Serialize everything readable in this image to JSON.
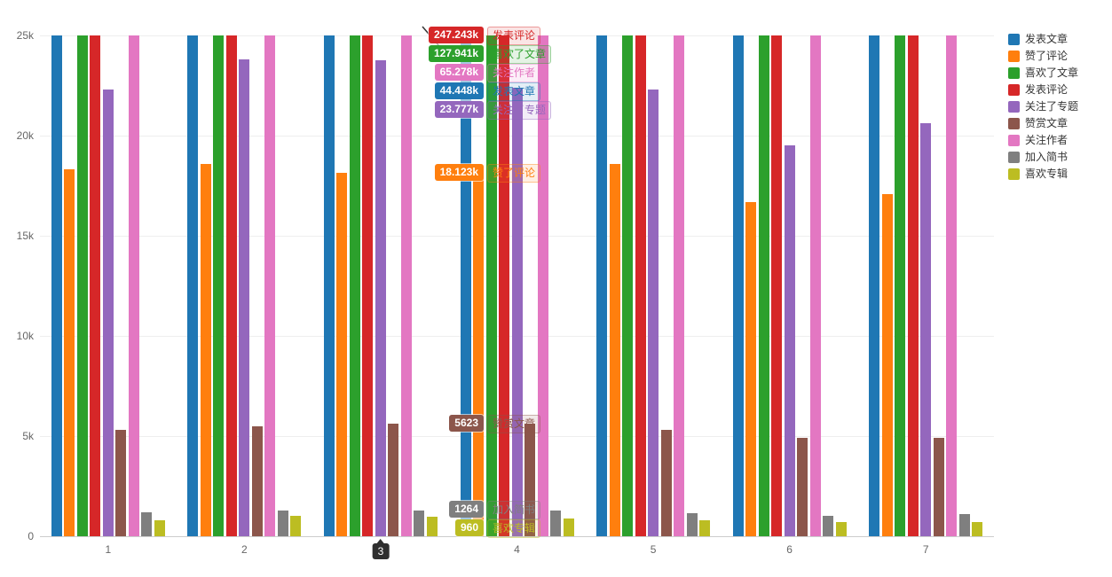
{
  "chart_data": {
    "type": "bar",
    "title": "",
    "xlabel": "",
    "ylabel": "",
    "ylim": [
      0,
      25000
    ],
    "grid": true,
    "legend_position": "right",
    "categories": [
      "1",
      "2",
      "3",
      "4",
      "5",
      "6",
      "7"
    ],
    "y_ticks": [
      "0",
      "5k",
      "10k",
      "15k",
      "20k",
      "25k"
    ],
    "note": "bars with values above 25k are clipped at the top of the plot",
    "series": [
      {
        "name": "发表文章",
        "color": "#1f77b4",
        "values": [
          44448,
          44448,
          44448,
          44448,
          44448,
          44448,
          44448
        ]
      },
      {
        "name": "赞了评论",
        "color": "#ff7f0e",
        "values": [
          18300,
          18600,
          18123,
          18200,
          18600,
          16700,
          17100
        ]
      },
      {
        "name": "喜欢了文章",
        "color": "#2ca02c",
        "values": [
          127941,
          127941,
          127941,
          127941,
          127941,
          127941,
          127941
        ]
      },
      {
        "name": "发表评论",
        "color": "#d62728",
        "values": [
          247243,
          247243,
          247243,
          247243,
          247243,
          247243,
          247243
        ]
      },
      {
        "name": "关注了专题",
        "color": "#9467bd",
        "values": [
          22300,
          23800,
          23777,
          22400,
          22300,
          19500,
          20600
        ]
      },
      {
        "name": "赞赏文章",
        "color": "#8c564b",
        "values": [
          5300,
          5500,
          5623,
          5600,
          5300,
          4900,
          4900
        ]
      },
      {
        "name": "关注作者",
        "color": "#e377c2",
        "values": [
          65278,
          65278,
          65278,
          65278,
          65278,
          65278,
          65278
        ]
      },
      {
        "name": "加入简书",
        "color": "#7f7f7f",
        "values": [
          1200,
          1300,
          1264,
          1300,
          1150,
          1000,
          1100
        ]
      },
      {
        "name": "喜欢专辑",
        "color": "#bcbd22",
        "values": [
          800,
          1000,
          960,
          900,
          800,
          700,
          700
        ]
      }
    ],
    "axis_pointer": {
      "category": "3",
      "items": [
        {
          "value_label": "247.243k",
          "name": "发表评论",
          "color": "#d62728"
        },
        {
          "value_label": "127.941k",
          "name": "喜欢了文章",
          "color": "#2ca02c"
        },
        {
          "value_label": "65.278k",
          "name": "关注作者",
          "color": "#e377c2"
        },
        {
          "value_label": "44.448k",
          "name": "发表文章",
          "color": "#1f77b4"
        },
        {
          "value_label": "23.777k",
          "name": "关注了专题",
          "color": "#9467bd"
        },
        {
          "value_label": "18.123k",
          "name": "赞了评论",
          "color": "#ff7f0e"
        },
        {
          "value_label": "5623",
          "name": "赞赏文章",
          "color": "#8c564b"
        },
        {
          "value_label": "1264",
          "name": "加入简书",
          "color": "#7f7f7f"
        },
        {
          "value_label": "960",
          "name": "喜欢专辑",
          "color": "#bcbd22"
        }
      ]
    }
  }
}
